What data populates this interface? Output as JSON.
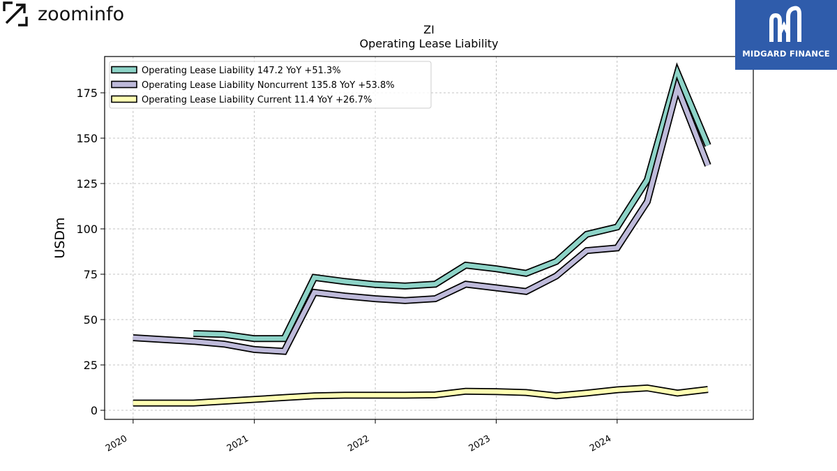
{
  "branding": {
    "left_logo_text": "zoominfo",
    "left_logo_icon": "zoominfo-z-icon",
    "right_badge_text": "MIDGARD FINANCE",
    "right_badge_icon": "midgard-m-icon",
    "right_badge_color": "#2f5cab"
  },
  "chart_data": {
    "type": "line",
    "title": "ZI",
    "subtitle": "Operating Lease Liability",
    "xlabel": "",
    "ylabel": "USDm",
    "x_ticks": [
      "2020",
      "2021",
      "2022",
      "2023",
      "2024"
    ],
    "y_ticks": [
      0,
      25,
      50,
      75,
      100,
      125,
      150,
      175
    ],
    "xlim": [
      "2019-10-07",
      "2025-02-15"
    ],
    "ylim": [
      -5,
      195
    ],
    "grid": true,
    "legend_position": "top-left",
    "series": [
      {
        "name": "Operating Lease Liability",
        "legend_label": "Operating Lease Liability  147.2 YoY +51.3%",
        "color": "#8dd3c7",
        "points": [
          [
            "2020-07-01",
            42.3
          ],
          [
            "2020-10-01",
            41.8
          ],
          [
            "2021-01-01",
            39.5
          ],
          [
            "2021-04-01",
            39.5
          ],
          [
            "2021-07-01",
            73.2
          ],
          [
            "2021-10-01",
            71.0
          ],
          [
            "2022-01-01",
            69.3
          ],
          [
            "2022-04-01",
            68.5
          ],
          [
            "2022-07-01",
            69.5
          ],
          [
            "2022-10-01",
            80.0
          ],
          [
            "2023-01-01",
            78.0
          ],
          [
            "2023-04-01",
            75.5
          ],
          [
            "2023-07-01",
            82.0
          ],
          [
            "2023-10-01",
            97.0
          ],
          [
            "2024-01-01",
            101.0
          ],
          [
            "2024-04-01",
            127.0
          ],
          [
            "2024-07-01",
            186.0
          ],
          [
            "2024-10-01",
            146.0
          ]
        ]
      },
      {
        "name": "Operating Lease Liability Noncurrent",
        "legend_label": "Operating Lease Liability Noncurrent  135.8 YoY +53.8%",
        "color": "#bebada",
        "points": [
          [
            "2020-01-01",
            40.0
          ],
          [
            "2020-04-01",
            39.0
          ],
          [
            "2020-07-01",
            38.0
          ],
          [
            "2020-10-01",
            36.5
          ],
          [
            "2021-01-01",
            33.5
          ],
          [
            "2021-04-01",
            32.5
          ],
          [
            "2021-07-01",
            65.0
          ],
          [
            "2021-10-01",
            63.0
          ],
          [
            "2022-01-01",
            61.5
          ],
          [
            "2022-04-01",
            60.5
          ],
          [
            "2022-07-01",
            61.5
          ],
          [
            "2022-10-01",
            69.5
          ],
          [
            "2023-01-01",
            67.5
          ],
          [
            "2023-04-01",
            65.5
          ],
          [
            "2023-07-01",
            74.0
          ],
          [
            "2023-10-01",
            88.0
          ],
          [
            "2024-01-01",
            89.5
          ],
          [
            "2024-04-01",
            115.0
          ],
          [
            "2024-07-01",
            178.0
          ],
          [
            "2024-10-01",
            135.0
          ]
        ]
      },
      {
        "name": "Operating Lease Liability Current",
        "legend_label": "Operating Lease Liability Current  11.4 YoY +26.7%",
        "color": "#ffffb3",
        "points": [
          [
            "2020-01-01",
            4.0
          ],
          [
            "2020-07-01",
            4.0
          ],
          [
            "2020-10-01",
            5.0
          ],
          [
            "2021-01-01",
            6.0
          ],
          [
            "2021-04-01",
            7.0
          ],
          [
            "2021-07-01",
            8.0
          ],
          [
            "2021-10-01",
            8.3
          ],
          [
            "2022-01-01",
            8.3
          ],
          [
            "2022-04-01",
            8.3
          ],
          [
            "2022-07-01",
            8.5
          ],
          [
            "2022-10-01",
            10.5
          ],
          [
            "2023-01-01",
            10.3
          ],
          [
            "2023-04-01",
            9.8
          ],
          [
            "2023-07-01",
            8.0
          ],
          [
            "2023-10-01",
            9.5
          ],
          [
            "2024-01-01",
            11.3
          ],
          [
            "2024-04-01",
            12.3
          ],
          [
            "2024-07-01",
            9.5
          ],
          [
            "2024-10-01",
            11.5
          ]
        ]
      }
    ]
  }
}
